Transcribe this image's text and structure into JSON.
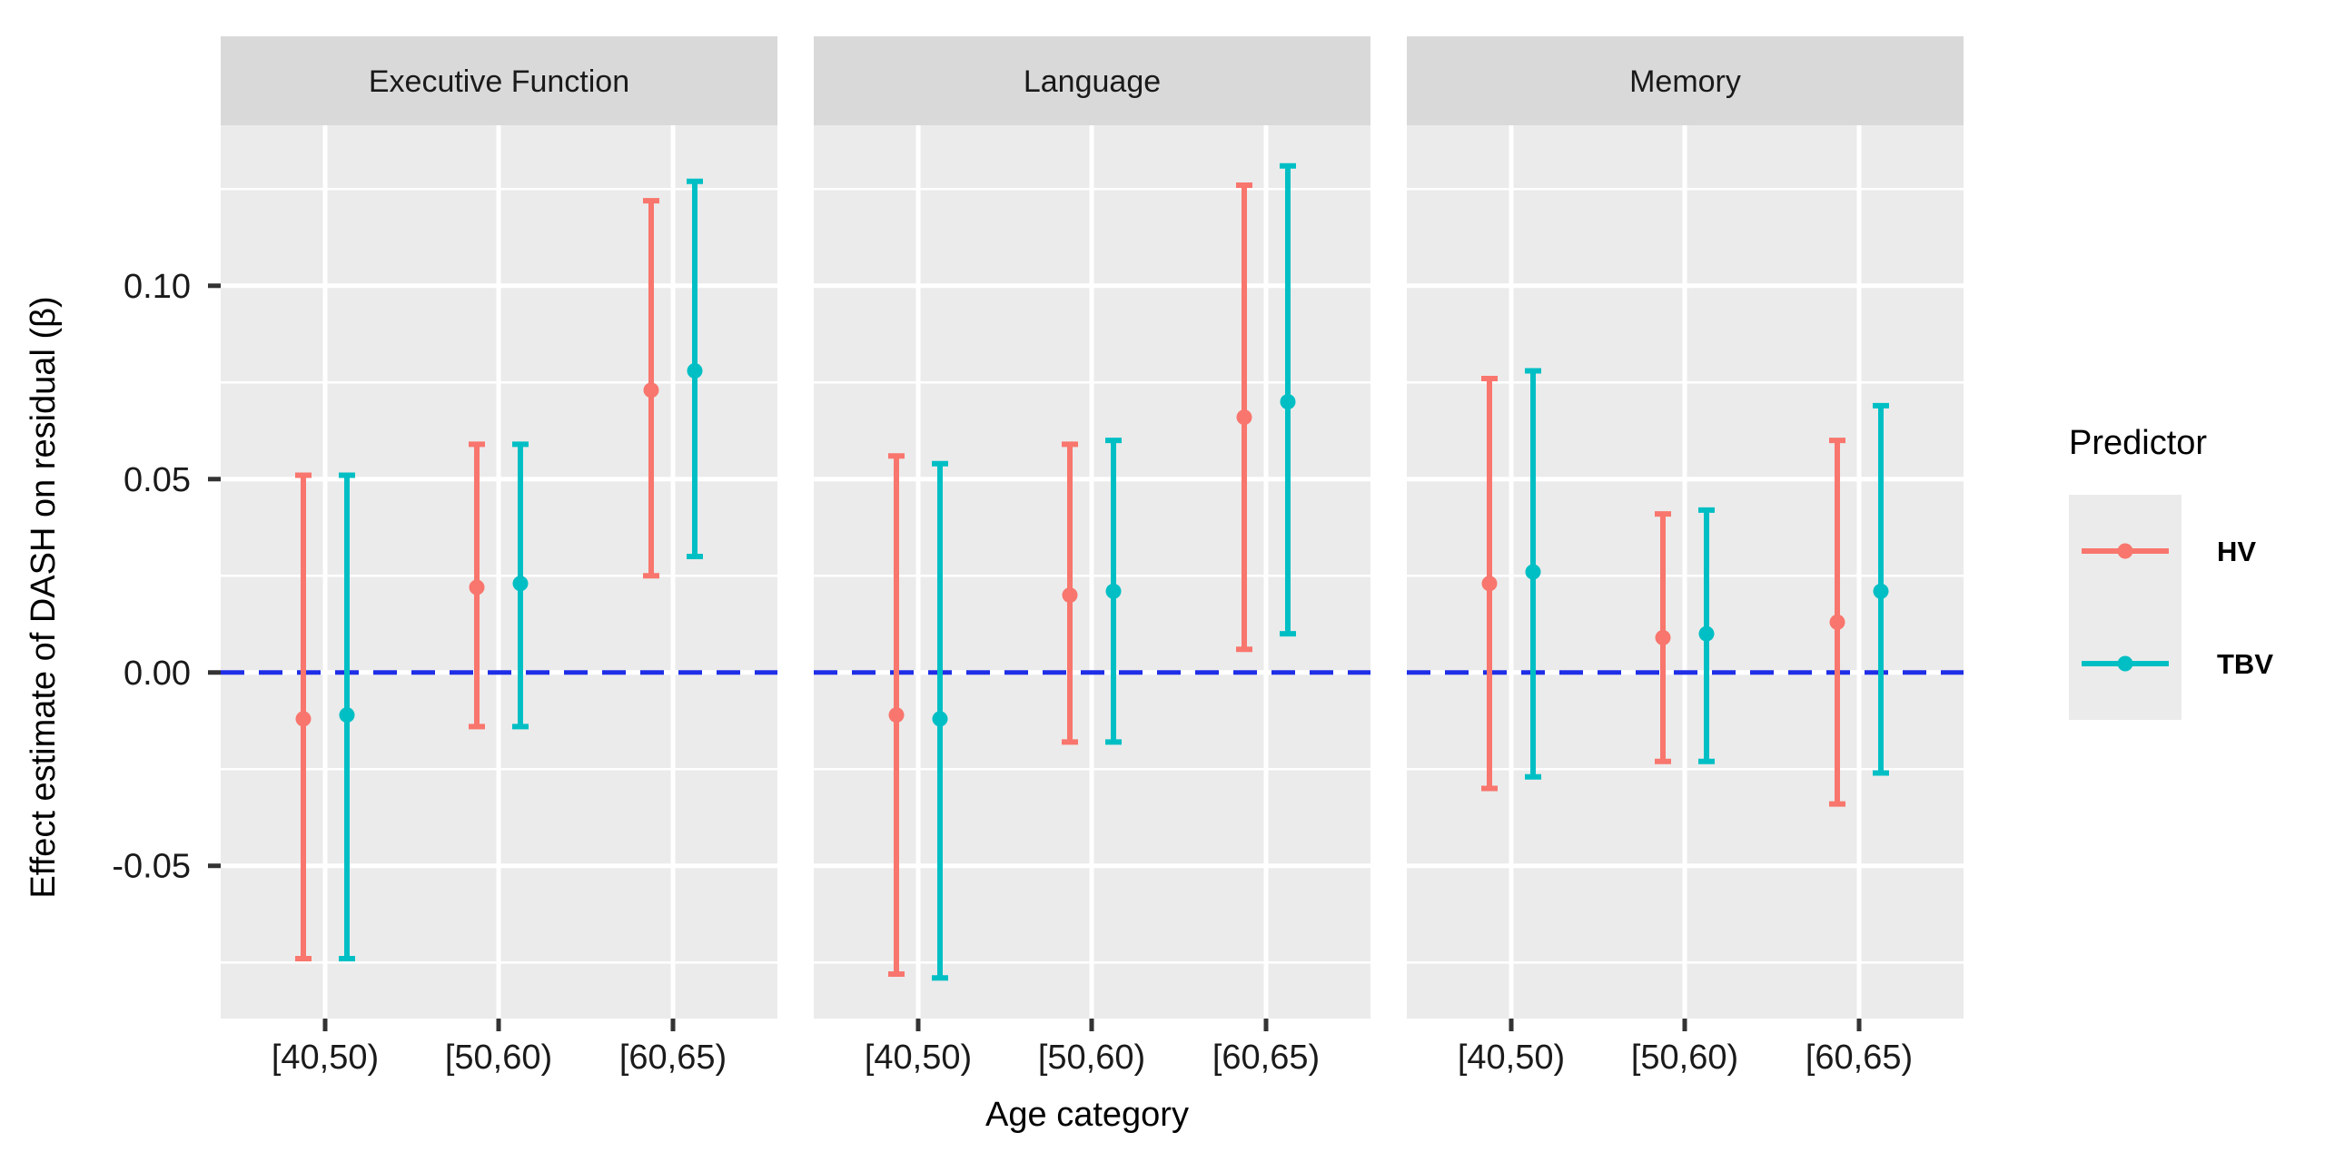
{
  "chart_data": {
    "type": "errorbar",
    "xlabel": "Age category",
    "ylabel": "Effect estimate of DASH on residual (β)",
    "ylim": [
      -0.0895,
      0.1415
    ],
    "yticks": [
      -0.05,
      0.0,
      0.05,
      0.1
    ],
    "ytick_labels": [
      "-0.05",
      "0.00",
      "0.05",
      "0.10"
    ],
    "categories": [
      "[40,50)",
      "[50,60)",
      "[60,65)"
    ],
    "reference_line": {
      "y": 0,
      "style": "dashed",
      "color": "#1f2ee6"
    },
    "grid": true,
    "legend": {
      "title": "Predictor",
      "position": "right"
    },
    "series_colors": {
      "HV": "#F8766D",
      "TBV": "#00BFC4"
    },
    "panels": [
      {
        "title": "Executive Function",
        "series": [
          {
            "name": "HV",
            "estimates": [
              -0.012,
              0.022,
              0.073
            ],
            "lower": [
              -0.074,
              -0.014,
              0.025
            ],
            "upper": [
              0.051,
              0.059,
              0.122
            ]
          },
          {
            "name": "TBV",
            "estimates": [
              -0.011,
              0.023,
              0.078
            ],
            "lower": [
              -0.074,
              -0.014,
              0.03
            ],
            "upper": [
              0.051,
              0.059,
              0.127
            ]
          }
        ]
      },
      {
        "title": "Language",
        "series": [
          {
            "name": "HV",
            "estimates": [
              -0.011,
              0.02,
              0.066
            ],
            "lower": [
              -0.078,
              -0.018,
              0.006
            ],
            "upper": [
              0.056,
              0.059,
              0.126
            ]
          },
          {
            "name": "TBV",
            "estimates": [
              -0.012,
              0.021,
              0.07
            ],
            "lower": [
              -0.079,
              -0.018,
              0.01
            ],
            "upper": [
              0.054,
              0.06,
              0.131
            ]
          }
        ]
      },
      {
        "title": "Memory",
        "series": [
          {
            "name": "HV",
            "estimates": [
              0.023,
              0.009,
              0.013
            ],
            "lower": [
              -0.03,
              -0.023,
              -0.034
            ],
            "upper": [
              0.076,
              0.041,
              0.06
            ]
          },
          {
            "name": "TBV",
            "estimates": [
              0.026,
              0.01,
              0.021
            ],
            "lower": [
              -0.027,
              -0.023,
              -0.026
            ],
            "upper": [
              0.078,
              0.042,
              0.069
            ]
          }
        ]
      }
    ]
  }
}
